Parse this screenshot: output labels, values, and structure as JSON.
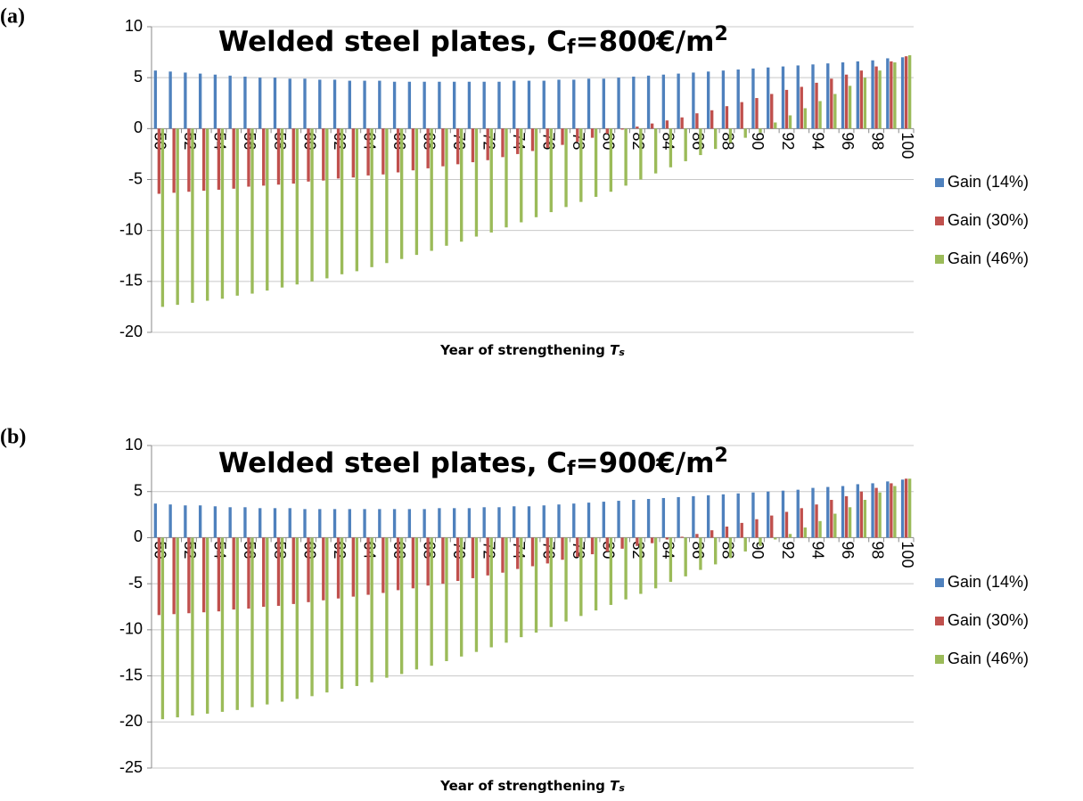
{
  "chart_data": [
    {
      "type": "bar",
      "panel_label": "(a)",
      "title": [
        "Welded steel plates, C",
        "f",
        "=800€/m",
        "2"
      ],
      "x_label": [
        "Year of strengthening ",
        "T",
        "s"
      ],
      "categories": [
        50,
        null,
        52,
        null,
        54,
        null,
        56,
        null,
        58,
        null,
        60,
        null,
        62,
        null,
        64,
        null,
        66,
        null,
        68,
        null,
        70,
        null,
        72,
        null,
        74,
        null,
        76,
        null,
        78,
        null,
        80,
        null,
        82,
        null,
        84,
        null,
        86,
        null,
        88,
        null,
        90,
        null,
        92,
        null,
        94,
        null,
        96,
        null,
        98,
        null,
        100
      ],
      "ylim": [
        -20,
        10
      ],
      "yticks": [
        -20,
        -15,
        -10,
        -5,
        0,
        5,
        10
      ],
      "grid": true,
      "legend": "right",
      "series": [
        {
          "name": "Gain (14%)",
          "color": "#4f81bd",
          "values": [
            5.7,
            5.6,
            5.5,
            5.4,
            5.3,
            5.2,
            5.1,
            5.0,
            5.0,
            4.9,
            4.9,
            4.8,
            4.8,
            4.7,
            4.7,
            4.7,
            4.6,
            4.6,
            4.6,
            4.6,
            4.6,
            4.6,
            4.6,
            4.6,
            4.7,
            4.7,
            4.7,
            4.8,
            4.8,
            4.9,
            4.9,
            5.0,
            5.1,
            5.2,
            5.3,
            5.4,
            5.5,
            5.6,
            5.7,
            5.8,
            5.9,
            6.0,
            6.1,
            6.2,
            6.3,
            6.4,
            6.5,
            6.6,
            6.7,
            6.9,
            7.0
          ]
        },
        {
          "name": "Gain (30%)",
          "color": "#c0504d",
          "values": [
            -6.4,
            -6.3,
            -6.2,
            -6.1,
            -6.0,
            -5.9,
            -5.7,
            -5.6,
            -5.5,
            -5.4,
            -5.2,
            -5.1,
            -4.9,
            -4.8,
            -4.6,
            -4.5,
            -4.3,
            -4.1,
            -3.9,
            -3.7,
            -3.5,
            -3.3,
            -3.1,
            -2.8,
            -2.5,
            -2.2,
            -1.9,
            -1.6,
            -1.3,
            -0.9,
            -0.5,
            -0.1,
            0.2,
            0.5,
            0.8,
            1.1,
            1.5,
            1.8,
            2.2,
            2.6,
            3.0,
            3.4,
            3.8,
            4.1,
            4.5,
            4.9,
            5.3,
            5.7,
            6.1,
            6.6,
            7.1
          ]
        },
        {
          "name": "Gain (46%)",
          "color": "#9bbb59",
          "values": [
            -17.5,
            -17.3,
            -17.1,
            -16.9,
            -16.7,
            -16.4,
            -16.2,
            -15.9,
            -15.6,
            -15.3,
            -15.0,
            -14.7,
            -14.3,
            -14.0,
            -13.6,
            -13.2,
            -12.8,
            -12.4,
            -12.0,
            -11.5,
            -11.1,
            -10.6,
            -10.2,
            -9.7,
            -9.2,
            -8.7,
            -8.2,
            -7.7,
            -7.2,
            -6.7,
            -6.2,
            -5.6,
            -5.0,
            -4.4,
            -3.8,
            -3.2,
            -2.6,
            -2.0,
            -1.4,
            -0.9,
            -0.4,
            0.6,
            1.3,
            2.0,
            2.7,
            3.4,
            4.2,
            5.0,
            5.7,
            6.5,
            7.2
          ]
        }
      ]
    },
    {
      "type": "bar",
      "panel_label": "(b)",
      "title": [
        "Welded steel plates, C",
        "f",
        "=900€/m",
        "2"
      ],
      "x_label": [
        "Year of strengthening ",
        "T",
        "s"
      ],
      "categories": [
        50,
        null,
        52,
        null,
        54,
        null,
        56,
        null,
        58,
        null,
        60,
        null,
        62,
        null,
        64,
        null,
        66,
        null,
        68,
        null,
        70,
        null,
        72,
        null,
        74,
        null,
        76,
        null,
        78,
        null,
        80,
        null,
        82,
        null,
        84,
        null,
        86,
        null,
        88,
        null,
        90,
        null,
        92,
        null,
        94,
        null,
        96,
        null,
        98,
        null,
        100
      ],
      "ylim": [
        -25,
        10
      ],
      "yticks": [
        -25,
        -20,
        -15,
        -10,
        -5,
        0,
        5,
        10
      ],
      "grid": true,
      "legend": "right",
      "series": [
        {
          "name": "Gain (14%)",
          "color": "#4f81bd",
          "values": [
            3.7,
            3.6,
            3.5,
            3.5,
            3.4,
            3.3,
            3.3,
            3.2,
            3.2,
            3.2,
            3.1,
            3.1,
            3.1,
            3.1,
            3.1,
            3.1,
            3.1,
            3.1,
            3.1,
            3.2,
            3.2,
            3.2,
            3.3,
            3.3,
            3.4,
            3.4,
            3.5,
            3.6,
            3.7,
            3.8,
            3.9,
            4.0,
            4.1,
            4.2,
            4.3,
            4.4,
            4.5,
            4.6,
            4.7,
            4.8,
            4.9,
            5.0,
            5.1,
            5.2,
            5.4,
            5.5,
            5.6,
            5.8,
            5.9,
            6.1,
            6.3
          ]
        },
        {
          "name": "Gain (30%)",
          "color": "#c0504d",
          "values": [
            -8.4,
            -8.3,
            -8.2,
            -8.1,
            -8.0,
            -7.8,
            -7.7,
            -7.5,
            -7.4,
            -7.2,
            -7.0,
            -6.8,
            -6.6,
            -6.4,
            -6.2,
            -6.0,
            -5.7,
            -5.5,
            -5.2,
            -5.0,
            -4.7,
            -4.4,
            -4.1,
            -3.8,
            -3.4,
            -3.1,
            -2.8,
            -2.4,
            -2.1,
            -1.8,
            -1.5,
            -1.2,
            -0.9,
            -0.6,
            -0.2,
            0.1,
            0.4,
            0.8,
            1.2,
            1.6,
            2.0,
            2.4,
            2.8,
            3.2,
            3.6,
            4.1,
            4.5,
            5.0,
            5.4,
            5.9,
            6.4
          ]
        },
        {
          "name": "Gain (46%)",
          "color": "#9bbb59",
          "values": [
            -19.7,
            -19.5,
            -19.3,
            -19.1,
            -18.9,
            -18.7,
            -18.4,
            -18.1,
            -17.8,
            -17.5,
            -17.2,
            -16.8,
            -16.4,
            -16.1,
            -15.7,
            -15.2,
            -14.8,
            -14.3,
            -13.9,
            -13.4,
            -12.9,
            -12.4,
            -11.9,
            -11.4,
            -10.8,
            -10.3,
            -9.7,
            -9.1,
            -8.5,
            -7.9,
            -7.3,
            -6.7,
            -6.1,
            -5.5,
            -4.8,
            -4.2,
            -3.5,
            -2.9,
            -2.2,
            -1.5,
            -0.9,
            -0.2,
            0.4,
            1.1,
            1.8,
            2.6,
            3.3,
            4.1,
            4.9,
            5.6,
            6.4
          ]
        }
      ]
    }
  ]
}
